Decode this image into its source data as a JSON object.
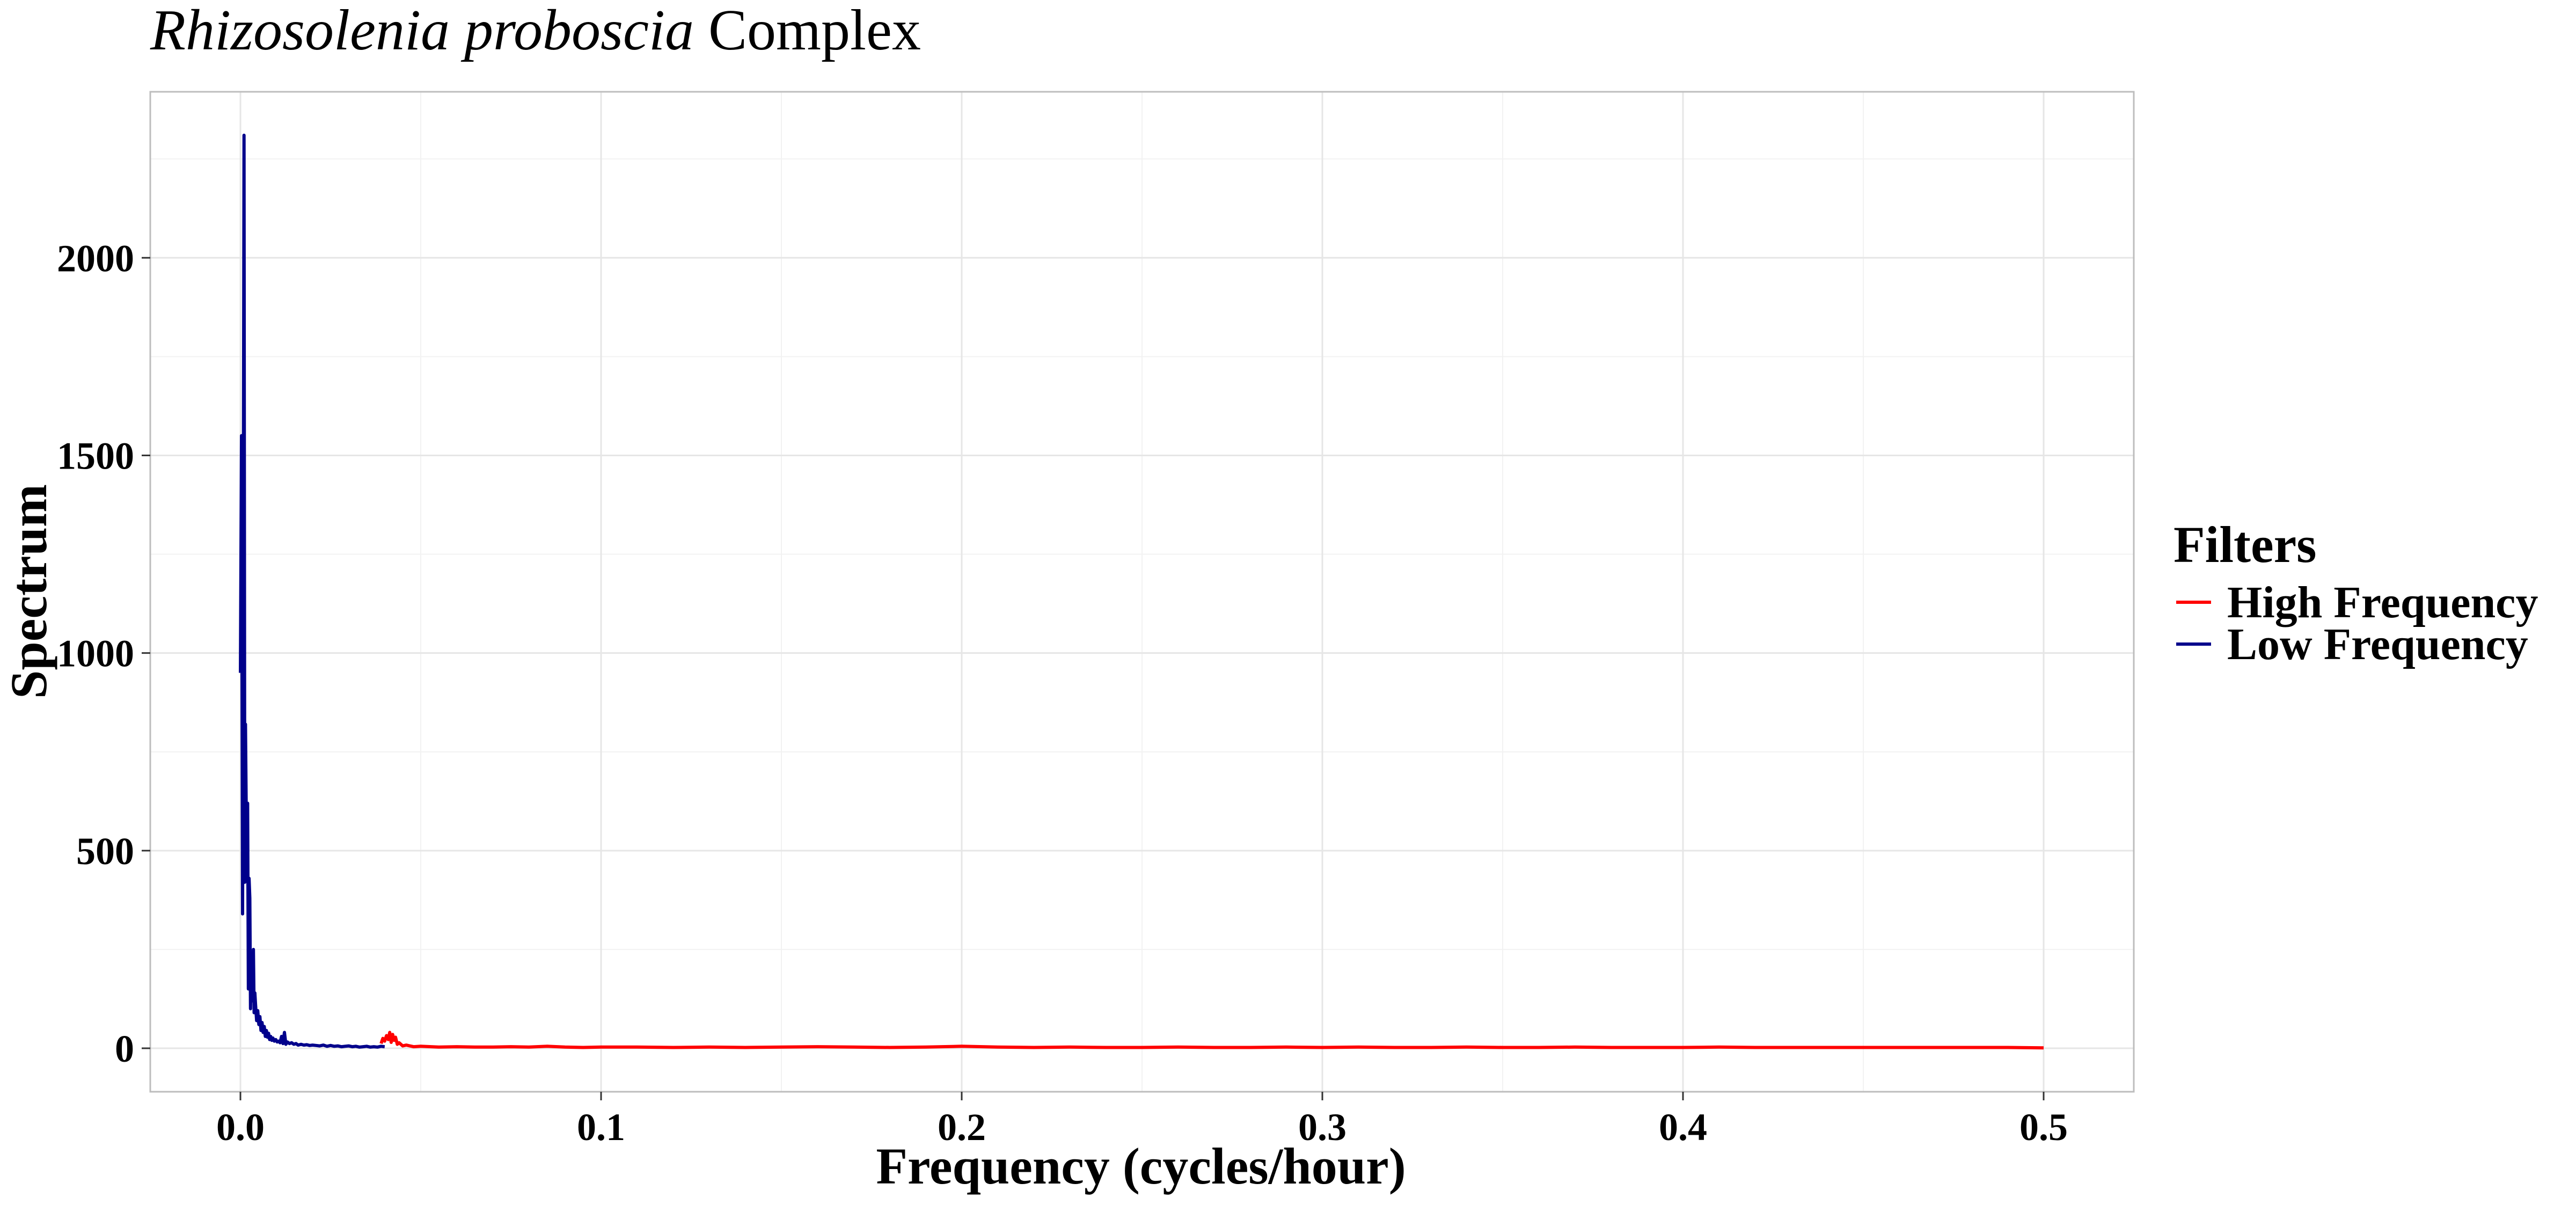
{
  "chart_data": {
    "type": "line",
    "title_italic": "Rhizosolenia proboscia",
    "title_rest": " Complex",
    "xlabel": "Frequency (cycles/hour)",
    "ylabel": "Spectrum",
    "xlim": [
      -0.025,
      0.525
    ],
    "ylim": [
      -110,
      2420
    ],
    "x_ticks": [
      "0.0",
      "0.1",
      "0.2",
      "0.3",
      "0.4",
      "0.5"
    ],
    "x_tick_values": [
      0,
      0.1,
      0.2,
      0.3,
      0.4,
      0.5
    ],
    "y_ticks": [
      "0",
      "500",
      "1000",
      "1500",
      "2000"
    ],
    "y_tick_values": [
      0,
      500,
      1000,
      1500,
      2000
    ],
    "grid": true,
    "legend": {
      "title": "Filters",
      "placement": "right",
      "entries": [
        {
          "label": "High Frequency",
          "color": "#ff0000"
        },
        {
          "label": "Low Frequency",
          "color": "#00008b"
        }
      ]
    },
    "series": [
      {
        "name": "Low Frequency",
        "color": "#00008b",
        "x": [
          0.0,
          0.0003,
          0.0006,
          0.0008,
          0.001,
          0.0012,
          0.0014,
          0.0016,
          0.0018,
          0.002,
          0.0022,
          0.0024,
          0.0026,
          0.0028,
          0.003,
          0.0032,
          0.0034,
          0.0036,
          0.0038,
          0.004,
          0.0042,
          0.0045,
          0.0048,
          0.0051,
          0.0054,
          0.0057,
          0.006,
          0.0063,
          0.0066,
          0.0069,
          0.0072,
          0.0075,
          0.0078,
          0.0081,
          0.0084,
          0.0087,
          0.009,
          0.0094,
          0.0098,
          0.0102,
          0.0106,
          0.011,
          0.0114,
          0.0118,
          0.0122,
          0.0126,
          0.013,
          0.0136,
          0.0142,
          0.0148,
          0.0154,
          0.016,
          0.0168,
          0.0176,
          0.0184,
          0.0192,
          0.02,
          0.021,
          0.022,
          0.023,
          0.024,
          0.025,
          0.026,
          0.027,
          0.028,
          0.029,
          0.03,
          0.031,
          0.032,
          0.033,
          0.034,
          0.035,
          0.036,
          0.037,
          0.038,
          0.039,
          0.04
        ],
        "y": [
          950,
          1550,
          340,
          1300,
          2310,
          420,
          820,
          600,
          480,
          620,
          150,
          430,
          380,
          100,
          240,
          160,
          120,
          250,
          90,
          140,
          110,
          70,
          95,
          60,
          80,
          45,
          65,
          40,
          55,
          30,
          45,
          28,
          38,
          22,
          30,
          20,
          26,
          18,
          22,
          16,
          18,
          14,
          30,
          12,
          40,
          10,
          16,
          12,
          14,
          10,
          12,
          8,
          10,
          8,
          9,
          7,
          8,
          7,
          6,
          8,
          5,
          7,
          5,
          6,
          4,
          5,
          6,
          4,
          5,
          3,
          4,
          5,
          3,
          4,
          3,
          5,
          4
        ]
      },
      {
        "name": "High Frequency",
        "color": "#ff0000",
        "x": [
          0.039,
          0.0395,
          0.04,
          0.0405,
          0.041,
          0.0414,
          0.0418,
          0.0422,
          0.0426,
          0.043,
          0.0435,
          0.044,
          0.045,
          0.046,
          0.048,
          0.05,
          0.055,
          0.06,
          0.065,
          0.07,
          0.075,
          0.08,
          0.085,
          0.09,
          0.095,
          0.1,
          0.11,
          0.12,
          0.13,
          0.14,
          0.15,
          0.16,
          0.17,
          0.18,
          0.19,
          0.2,
          0.21,
          0.22,
          0.23,
          0.24,
          0.25,
          0.26,
          0.27,
          0.28,
          0.29,
          0.3,
          0.31,
          0.32,
          0.33,
          0.34,
          0.35,
          0.36,
          0.37,
          0.38,
          0.39,
          0.4,
          0.41,
          0.42,
          0.43,
          0.44,
          0.45,
          0.46,
          0.47,
          0.48,
          0.49,
          0.5
        ],
        "y": [
          12,
          25,
          18,
          32,
          22,
          40,
          15,
          35,
          20,
          28,
          10,
          14,
          6,
          8,
          4,
          5,
          3,
          4,
          3,
          3,
          4,
          3,
          5,
          3,
          2,
          3,
          3,
          2,
          3,
          2,
          3,
          4,
          3,
          2,
          3,
          5,
          3,
          2,
          3,
          2,
          2,
          3,
          2,
          2,
          3,
          2,
          3,
          2,
          2,
          3,
          2,
          2,
          3,
          2,
          2,
          2,
          3,
          2,
          2,
          2,
          2,
          2,
          2,
          2,
          2,
          1
        ]
      }
    ]
  }
}
